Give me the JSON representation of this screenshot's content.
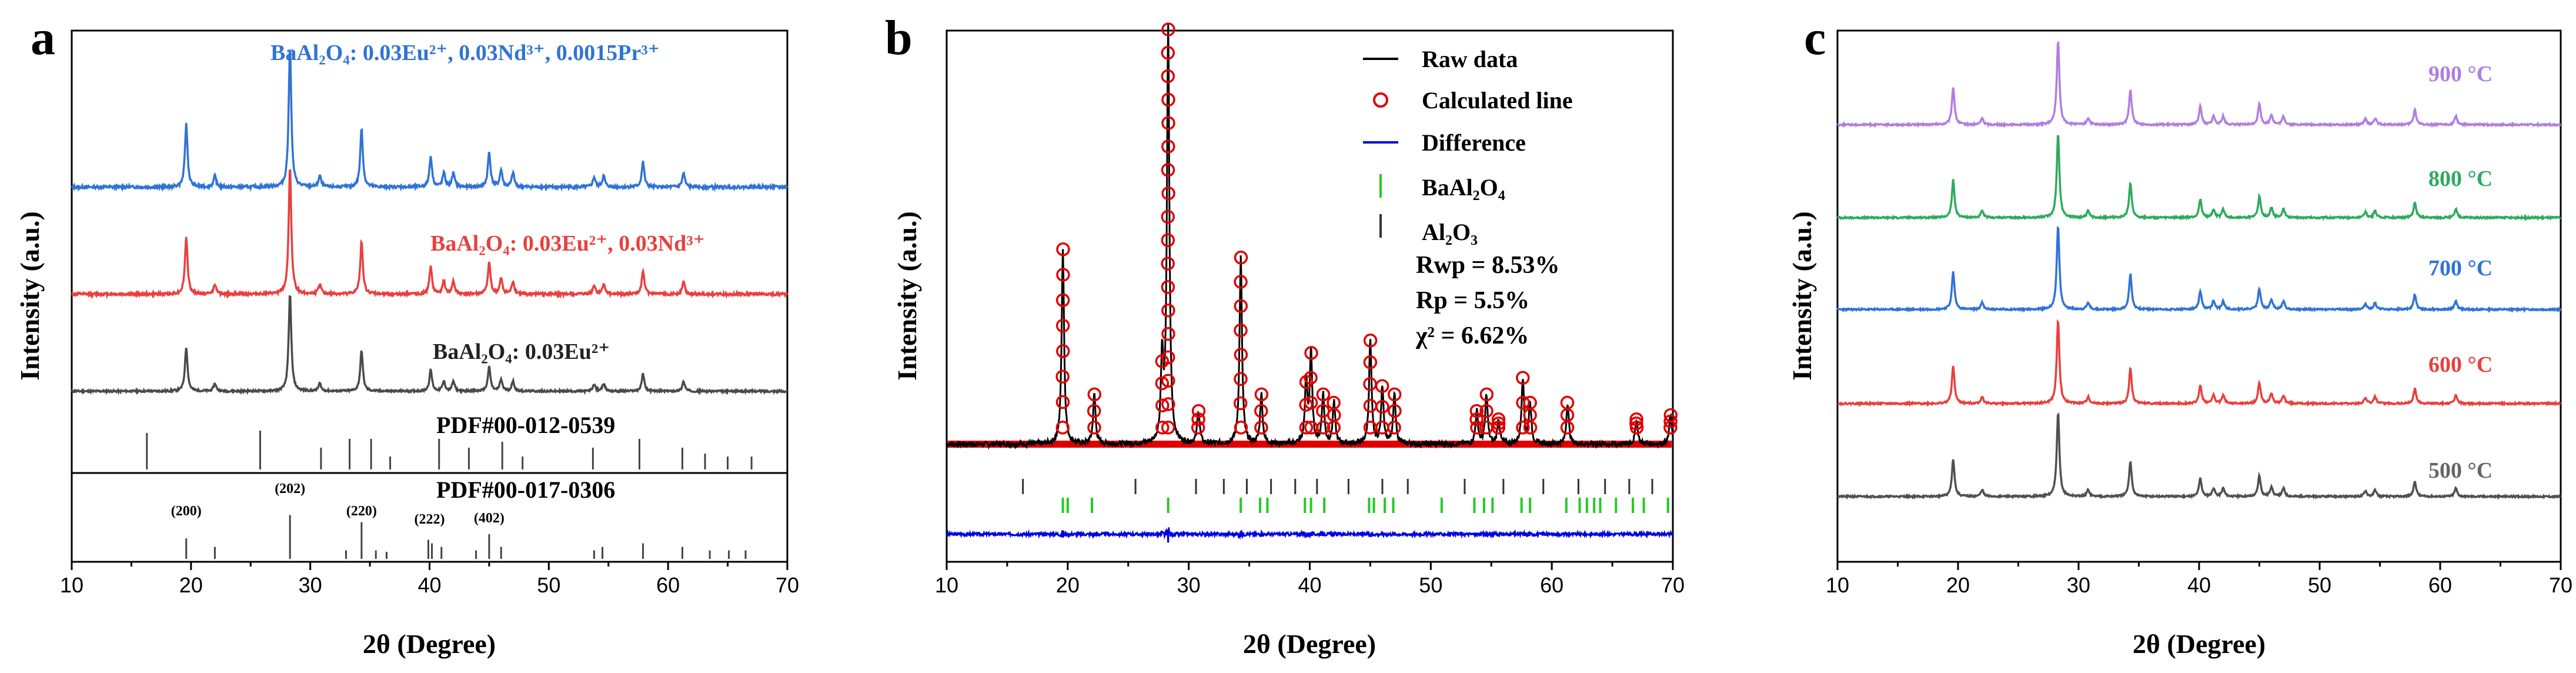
{
  "chart_data": [
    {
      "panel": "a",
      "type": "line",
      "xlabel": "2θ (Degree)",
      "ylabel": "Intensity (a.u.)",
      "xlim": [
        10,
        70
      ],
      "xticks": [
        10,
        20,
        30,
        40,
        50,
        60,
        70
      ],
      "peaks": [
        19.6,
        22.0,
        28.3,
        30.8,
        34.3,
        40.1,
        41.2,
        42.0,
        45.0,
        46.0,
        47.0,
        53.8,
        54.6,
        57.9,
        61.3
      ],
      "peak_heights": [
        0.45,
        0.08,
        1.0,
        0.08,
        0.42,
        0.22,
        0.1,
        0.1,
        0.25,
        0.12,
        0.1,
        0.07,
        0.08,
        0.18,
        0.1
      ],
      "series": [
        {
          "name": "BaAl₂O₄: 0.03Eu²⁺",
          "color": "#4a4a4a"
        },
        {
          "name": "BaAl₂O₄: 0.03Eu²⁺, 0.03Nd³⁺",
          "color": "#e8403e"
        },
        {
          "name": "BaAl₂O₄: 0.03Eu²⁺, 0.03Nd³⁺, 0.0015Pr³⁺",
          "color": "#2f73d6"
        }
      ],
      "references": [
        {
          "name": "PDF#00-012-0539",
          "positions": [
            16.3,
            25.8,
            30.9,
            33.3,
            35.1,
            36.7,
            40.8,
            43.3,
            46.1,
            47.8,
            53.7,
            57.6,
            61.2,
            63.1,
            65.0,
            67.0
          ],
          "heights": [
            0.62,
            0.66,
            0.37,
            0.52,
            0.52,
            0.22,
            0.52,
            0.37,
            0.47,
            0.22,
            0.37,
            0.52,
            0.37,
            0.27,
            0.22,
            0.22
          ]
        },
        {
          "name": "PDF#00-017-0306",
          "positions": [
            19.6,
            22.0,
            28.3,
            33.0,
            34.3,
            35.5,
            36.4,
            39.9,
            40.2,
            41.0,
            43.9,
            45.0,
            46.0,
            53.8,
            54.5,
            57.9,
            61.2,
            63.5,
            65.1,
            66.5
          ],
          "heights": [
            0.29,
            0.17,
            0.62,
            0.12,
            0.52,
            0.12,
            0.1,
            0.27,
            0.22,
            0.17,
            0.12,
            0.35,
            0.17,
            0.12,
            0.17,
            0.22,
            0.17,
            0.12,
            0.12,
            0.12
          ]
        }
      ],
      "annotations": [
        {
          "text": "(200)",
          "x": 19.6
        },
        {
          "text": "(202)",
          "x": 28.3
        },
        {
          "text": "(220)",
          "x": 34.3
        },
        {
          "text": "(222)",
          "x": 40.0
        },
        {
          "text": "(402)",
          "x": 45.0
        }
      ]
    },
    {
      "panel": "b",
      "type": "line",
      "xlabel": "2θ (Degree)",
      "ylabel": "Intensity (a.u.)",
      "xlim": [
        10,
        70
      ],
      "xticks": [
        10,
        20,
        30,
        40,
        50,
        60,
        70
      ],
      "legend": [
        {
          "label": "Raw data",
          "color": "#000000",
          "kind": "line"
        },
        {
          "label": "Calculated line",
          "color": "#e00000",
          "kind": "circle"
        },
        {
          "label": "Difference",
          "color": "#0000e0",
          "kind": "line"
        },
        {
          "label": "BaAl₂O₄",
          "color": "#22cc22",
          "kind": "tick"
        },
        {
          "label": "Al₂O₃",
          "color": "#333333",
          "kind": "tick"
        }
      ],
      "stats": [
        "Rwp = 8.53%",
        "Rp = 5.5%",
        "χ² = 6.62%"
      ],
      "peaks": [
        19.6,
        22.2,
        27.8,
        28.3,
        30.8,
        34.3,
        36.0,
        39.7,
        40.1,
        41.1,
        42.0,
        45.0,
        46.0,
        47.0,
        53.8,
        54.6,
        55.6,
        57.6,
        58.2,
        61.3,
        67.0,
        69.8
      ],
      "peak_heights": [
        0.47,
        0.12,
        0.2,
        1.0,
        0.08,
        0.45,
        0.12,
        0.15,
        0.22,
        0.12,
        0.1,
        0.25,
        0.14,
        0.12,
        0.08,
        0.12,
        0.06,
        0.16,
        0.1,
        0.1,
        0.06,
        0.07
      ],
      "baal2o4_ticks": [
        19.6,
        20.0,
        22.0,
        28.3,
        34.3,
        35.9,
        36.5,
        39.6,
        40.1,
        41.2,
        44.9,
        45.3,
        46.2,
        46.9,
        50.9,
        53.6,
        54.4,
        55.1,
        57.5,
        58.2,
        61.2,
        62.3,
        62.9,
        63.5,
        64.0,
        65.3,
        66.7,
        67.6,
        69.6
      ],
      "al2o3_ticks": [
        16.3,
        25.6,
        30.6,
        32.9,
        34.8,
        36.8,
        38.8,
        40.6,
        43.2,
        46.0,
        48.1,
        52.8,
        56.0,
        59.3,
        62.2,
        64.4,
        66.4,
        68.3
      ]
    },
    {
      "panel": "c",
      "type": "line",
      "xlabel": "2θ (Degree)",
      "ylabel": "Intensity (a.u.)",
      "xlim": [
        10,
        70
      ],
      "xticks": [
        10,
        20,
        30,
        40,
        50,
        60,
        70
      ],
      "peaks": [
        19.6,
        22.0,
        28.3,
        30.8,
        34.3,
        40.1,
        41.2,
        42.0,
        45.0,
        46.0,
        47.0,
        53.8,
        54.6,
        57.9,
        61.3
      ],
      "peak_heights": [
        0.45,
        0.08,
        1.0,
        0.08,
        0.42,
        0.22,
        0.1,
        0.1,
        0.25,
        0.12,
        0.1,
        0.07,
        0.08,
        0.18,
        0.1
      ],
      "series": [
        {
          "name": "500 °C",
          "color": "#505050"
        },
        {
          "name": "600 °C",
          "color": "#e8403e"
        },
        {
          "name": "700 °C",
          "color": "#2f73d6"
        },
        {
          "name": "800 °C",
          "color": "#2eaa5e"
        },
        {
          "name": "900 °C",
          "color": "#b07ee0"
        }
      ]
    }
  ],
  "panels": {
    "a": {
      "letter": "a",
      "xlabel": "2θ (Degree)",
      "ylabel": "Intensity (a.u.)",
      "ticks": [
        "10",
        "20",
        "30",
        "40",
        "50",
        "60",
        "70"
      ],
      "label_pr": "BaAl₂O₄: 0.03Eu²⁺, 0.03Nd³⁺, 0.0015Pr³⁺",
      "label_nd": "BaAl₂O₄: 0.03Eu²⁺, 0.03Nd³⁺",
      "label_eu": "BaAl₂O₄: 0.03Eu²⁺",
      "ref1": "PDF#00-012-0539",
      "ref2": "PDF#00-017-0306",
      "hkl": [
        "(200)",
        "(202)",
        "(220)",
        "(222)",
        "(402)"
      ]
    },
    "b": {
      "letter": "b",
      "xlabel": "2θ (Degree)",
      "ylabel": "Intensity (a.u.)",
      "ticks": [
        "10",
        "20",
        "30",
        "40",
        "50",
        "60",
        "70"
      ],
      "legend": [
        "Raw data",
        "Calculated line",
        "Difference",
        "BaAl₂O₄",
        "Al₂O₃"
      ],
      "stats": [
        "Rwp = 8.53%",
        "Rp = 5.5%",
        "χ² = 6.62%"
      ]
    },
    "c": {
      "letter": "c",
      "xlabel": "2θ (Degree)",
      "ylabel": "Intensity (a.u.)",
      "ticks": [
        "10",
        "20",
        "30",
        "40",
        "50",
        "60",
        "70"
      ],
      "temps": [
        "900 °C",
        "800 °C",
        "700 °C",
        "600 °C",
        "500 °C"
      ]
    }
  },
  "colors": {
    "gray": "#4a4a4a",
    "red": "#e8403e",
    "blue": "#2f73d6",
    "green": "#2eaa5e",
    "purple": "#b07ee0",
    "calc_red": "#e00000",
    "diff_blue": "#0000e0",
    "tick_green": "#22cc22"
  }
}
